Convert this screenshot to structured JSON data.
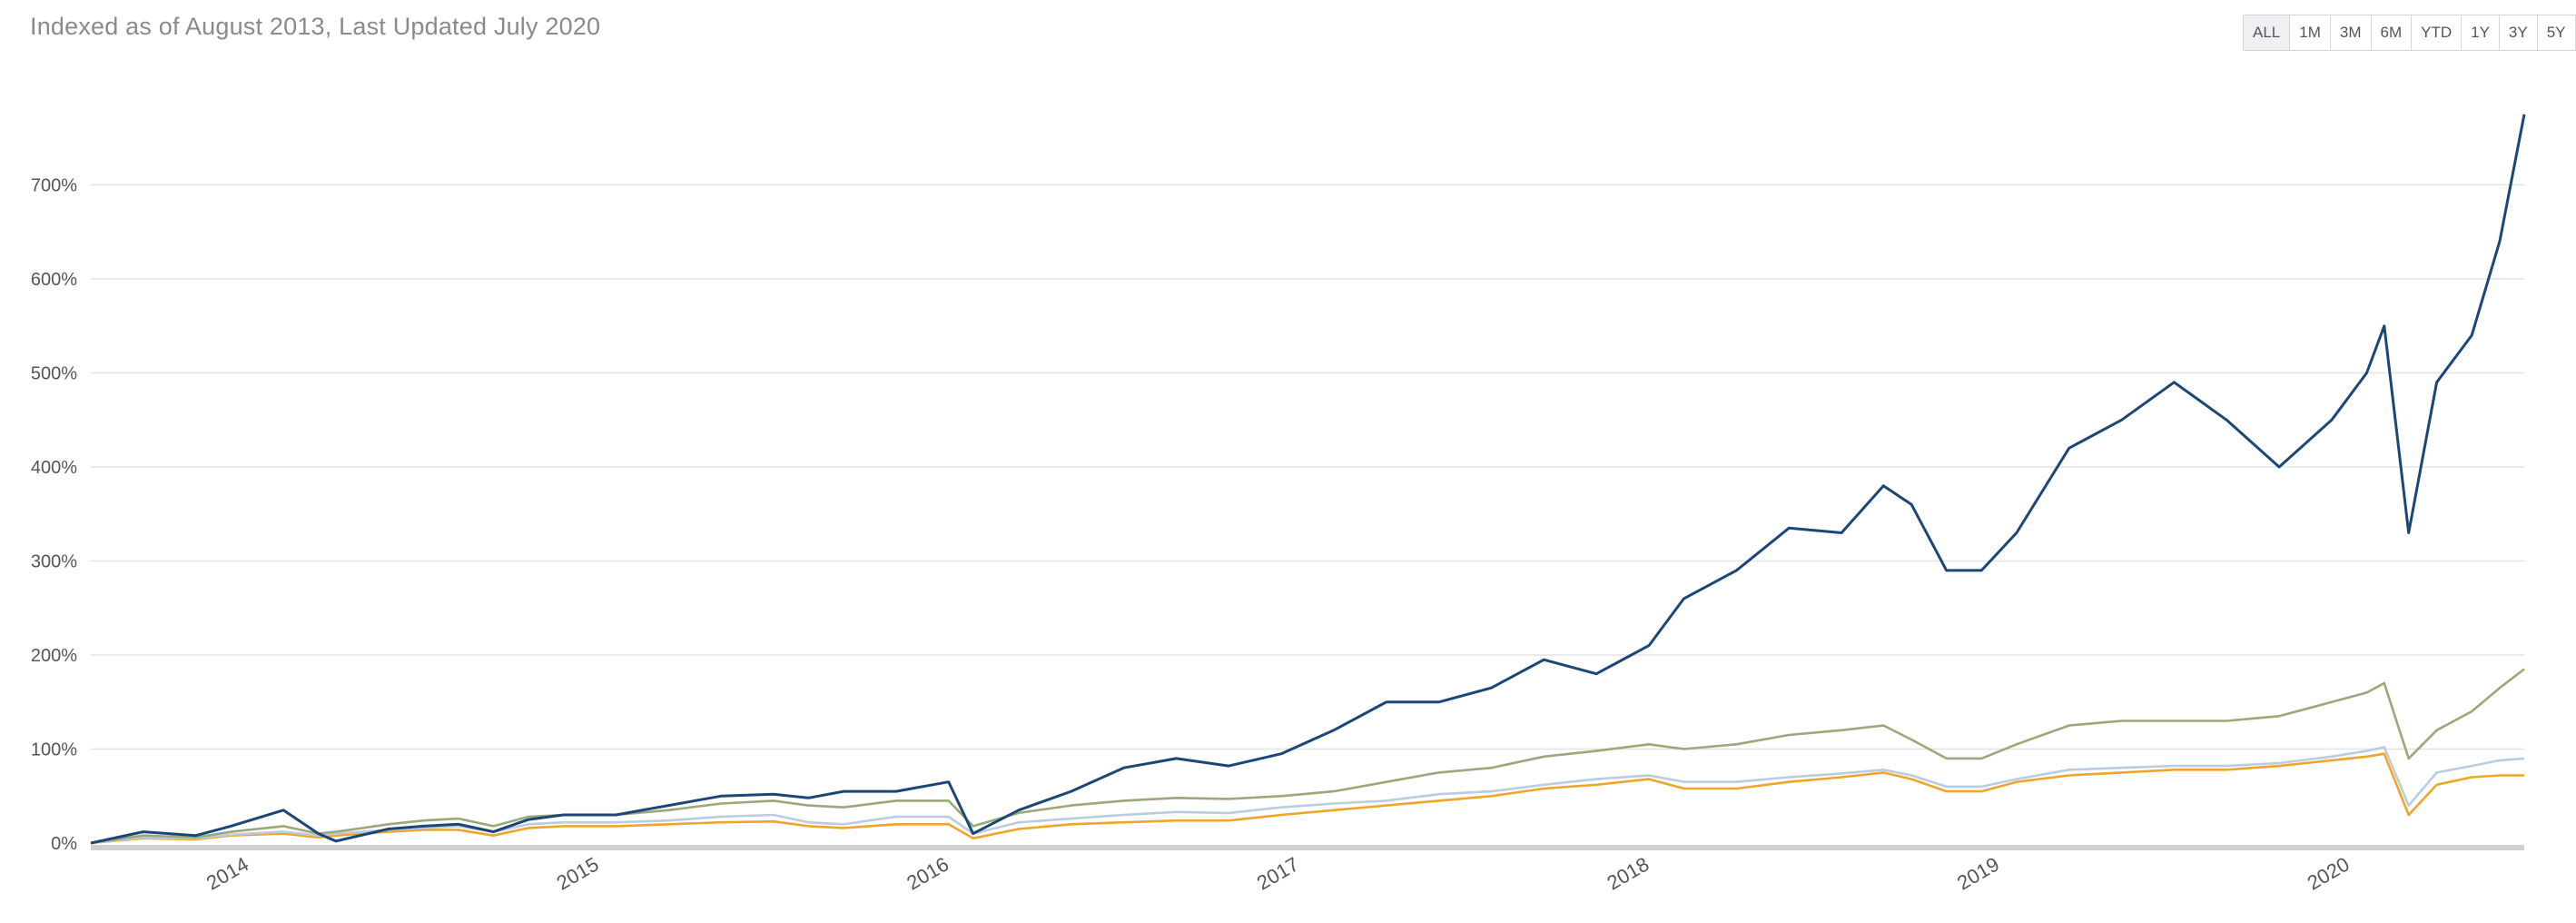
{
  "header": {
    "title": "Indexed as of August 2013, Last Updated July 2020"
  },
  "range_selector": {
    "buttons": [
      "ALL",
      "1M",
      "3M",
      "6M",
      "YTD",
      "1Y",
      "3Y",
      "5Y"
    ],
    "active": "ALL"
  },
  "chart_data": {
    "type": "line",
    "title": "Indexed as of August 2013, Last Updated July 2020",
    "xlabel": "",
    "ylabel": "",
    "y_ticks": [
      "0%",
      "100%",
      "200%",
      "300%",
      "400%",
      "500%",
      "600%",
      "700%"
    ],
    "y_tick_values": [
      0,
      100,
      200,
      300,
      400,
      500,
      600,
      700
    ],
    "x_ticks": [
      "2014",
      "2015",
      "2016",
      "2017",
      "2018",
      "2019",
      "2020"
    ],
    "x_tick_values": [
      2014,
      2015,
      2016,
      2017,
      2018,
      2019,
      2020
    ],
    "xlim": [
      2013.6,
      2020.55
    ],
    "ylim": [
      0,
      780
    ],
    "grid": true,
    "x": [
      2013.6,
      2013.75,
      2013.9,
      2014.0,
      2014.15,
      2014.25,
      2014.3,
      2014.45,
      2014.55,
      2014.65,
      2014.75,
      2014.85,
      2014.95,
      2015.1,
      2015.25,
      2015.4,
      2015.55,
      2015.65,
      2015.75,
      2015.9,
      2016.05,
      2016.12,
      2016.25,
      2016.4,
      2016.55,
      2016.7,
      2016.85,
      2017.0,
      2017.15,
      2017.3,
      2017.45,
      2017.6,
      2017.75,
      2017.9,
      2018.05,
      2018.15,
      2018.3,
      2018.45,
      2018.6,
      2018.72,
      2018.8,
      2018.9,
      2019.0,
      2019.1,
      2019.25,
      2019.4,
      2019.55,
      2019.7,
      2019.85,
      2020.0,
      2020.1,
      2020.15,
      2020.22,
      2020.3,
      2020.4,
      2020.48,
      2020.55
    ],
    "series": [
      {
        "color": "#1b4778",
        "values": [
          0,
          12,
          8,
          18,
          35,
          10,
          2,
          15,
          18,
          20,
          12,
          25,
          30,
          30,
          40,
          50,
          52,
          48,
          55,
          55,
          65,
          10,
          35,
          55,
          80,
          90,
          82,
          95,
          120,
          150,
          150,
          165,
          195,
          180,
          210,
          260,
          290,
          335,
          330,
          380,
          360,
          290,
          290,
          330,
          420,
          450,
          490,
          450,
          400,
          450,
          500,
          550,
          330,
          490,
          540,
          640,
          775
        ]
      },
      {
        "color": "#9aa87a",
        "values": [
          0,
          8,
          6,
          12,
          18,
          10,
          12,
          20,
          24,
          26,
          18,
          28,
          30,
          30,
          35,
          42,
          45,
          40,
          38,
          45,
          45,
          18,
          32,
          40,
          45,
          48,
          47,
          50,
          55,
          65,
          75,
          80,
          92,
          98,
          105,
          100,
          105,
          115,
          120,
          125,
          110,
          90,
          90,
          105,
          125,
          130,
          130,
          130,
          135,
          150,
          160,
          170,
          90,
          120,
          140,
          165,
          185
        ]
      },
      {
        "color": "#b9cce0",
        "values": [
          0,
          6,
          5,
          9,
          12,
          8,
          10,
          14,
          16,
          18,
          12,
          20,
          22,
          22,
          24,
          28,
          30,
          22,
          20,
          28,
          28,
          10,
          22,
          26,
          30,
          33,
          32,
          38,
          42,
          45,
          52,
          55,
          62,
          68,
          72,
          65,
          65,
          70,
          74,
          78,
          72,
          60,
          60,
          68,
          78,
          80,
          82,
          82,
          85,
          92,
          98,
          102,
          40,
          75,
          82,
          88,
          90
        ]
      },
      {
        "color": "#f0a52a",
        "values": [
          0,
          5,
          4,
          8,
          10,
          6,
          8,
          12,
          14,
          14,
          8,
          16,
          18,
          18,
          20,
          22,
          23,
          18,
          16,
          20,
          20,
          5,
          15,
          20,
          22,
          24,
          24,
          30,
          35,
          40,
          45,
          50,
          58,
          62,
          68,
          58,
          58,
          65,
          70,
          75,
          68,
          55,
          55,
          65,
          72,
          75,
          78,
          78,
          82,
          88,
          92,
          95,
          30,
          62,
          70,
          72,
          72
        ]
      }
    ]
  }
}
